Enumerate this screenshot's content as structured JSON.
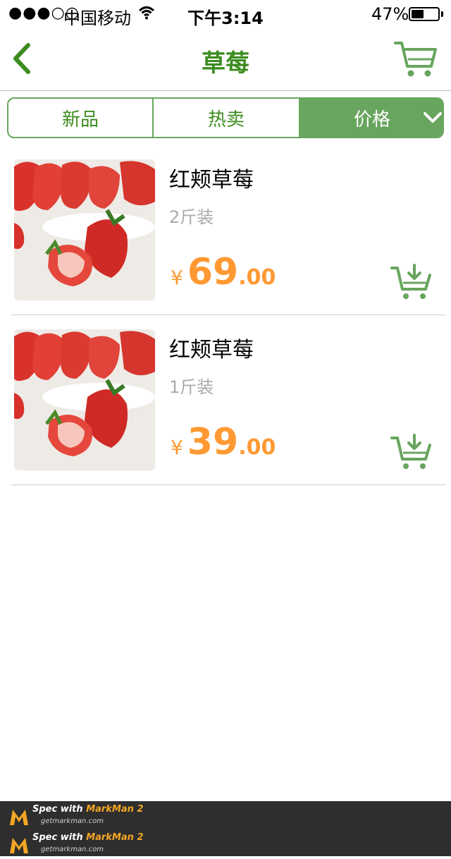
{
  "status_bar": {
    "signal": "●●●○○",
    "carrier": "中国移动",
    "time": "下午3:14",
    "battery": "47%",
    "battery_level": 0.47
  },
  "nav": {
    "title": "草莓",
    "back_icon": "chevron-left-icon",
    "cart_icon": "cart-icon"
  },
  "tabs": [
    {
      "label": "新品",
      "active": false
    },
    {
      "label": "热卖",
      "active": false
    },
    {
      "label": "价格",
      "active": true,
      "icon": "chevron-down-icon"
    }
  ],
  "products": [
    {
      "name": "红颊草莓",
      "spec": "2斤装",
      "currency": "¥",
      "price_int": "69",
      "price_dec": ".00"
    },
    {
      "name": "红颊草莓",
      "spec": "1斤装",
      "currency": "¥",
      "price_int": "39",
      "price_dec": ".00"
    }
  ],
  "footer": {
    "lines": [
      {
        "prefix": "Spec with ",
        "brand": "MarkMan 2",
        "sub": "getmarkman.com"
      },
      {
        "prefix": "Spec with ",
        "brand": "MarkMan 2",
        "sub": "getmarkman.com"
      }
    ]
  },
  "colors": {
    "primary": "#3c8c1e",
    "accent": "#68a55e",
    "price": "#ff9933",
    "muted": "#aaaaaa",
    "white": "#ffffff"
  }
}
